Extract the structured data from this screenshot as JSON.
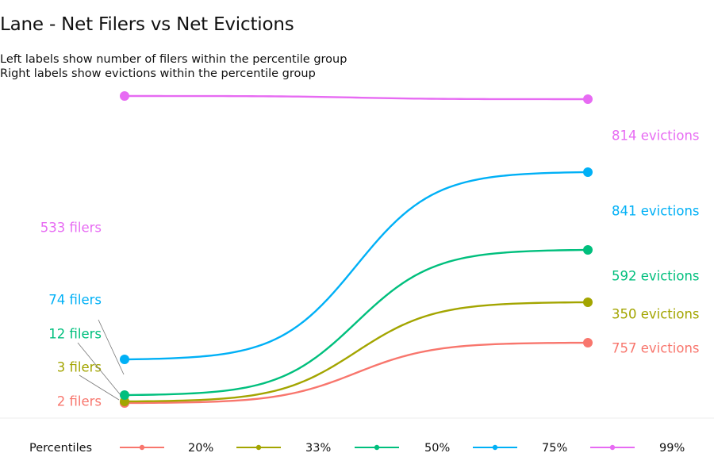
{
  "chart_data": {
    "type": "line",
    "title": "Lane - Net Filers vs Net Evictions",
    "subtitle_lines": [
      "Left labels show number of filers within the percentile group",
      "Right labels show evictions within the percentile group"
    ],
    "legend_title": "Percentiles",
    "legend_position": "bottom",
    "grid": false,
    "series": [
      {
        "name": "20%",
        "color": "#F8766D",
        "left_label": "2 filers",
        "right_label": "757 evictions",
        "start": 2,
        "end": 757
      },
      {
        "name": "33%",
        "color": "#A3A500",
        "left_label": "3 filers",
        "right_label": "350 evictions",
        "start": 3,
        "end": 350
      },
      {
        "name": "50%",
        "color": "#00BF7D",
        "left_label": "12 filers",
        "right_label": "592 evictions",
        "start": 12,
        "end": 592
      },
      {
        "name": "75%",
        "color": "#00B0F6",
        "left_label": "74 filers",
        "right_label": "841 evictions",
        "start": 74,
        "end": 841
      },
      {
        "name": "99%",
        "color": "#E76BF3",
        "left_label": "533 filers",
        "right_label": "814 evictions",
        "start": 533,
        "end": 814
      }
    ]
  }
}
